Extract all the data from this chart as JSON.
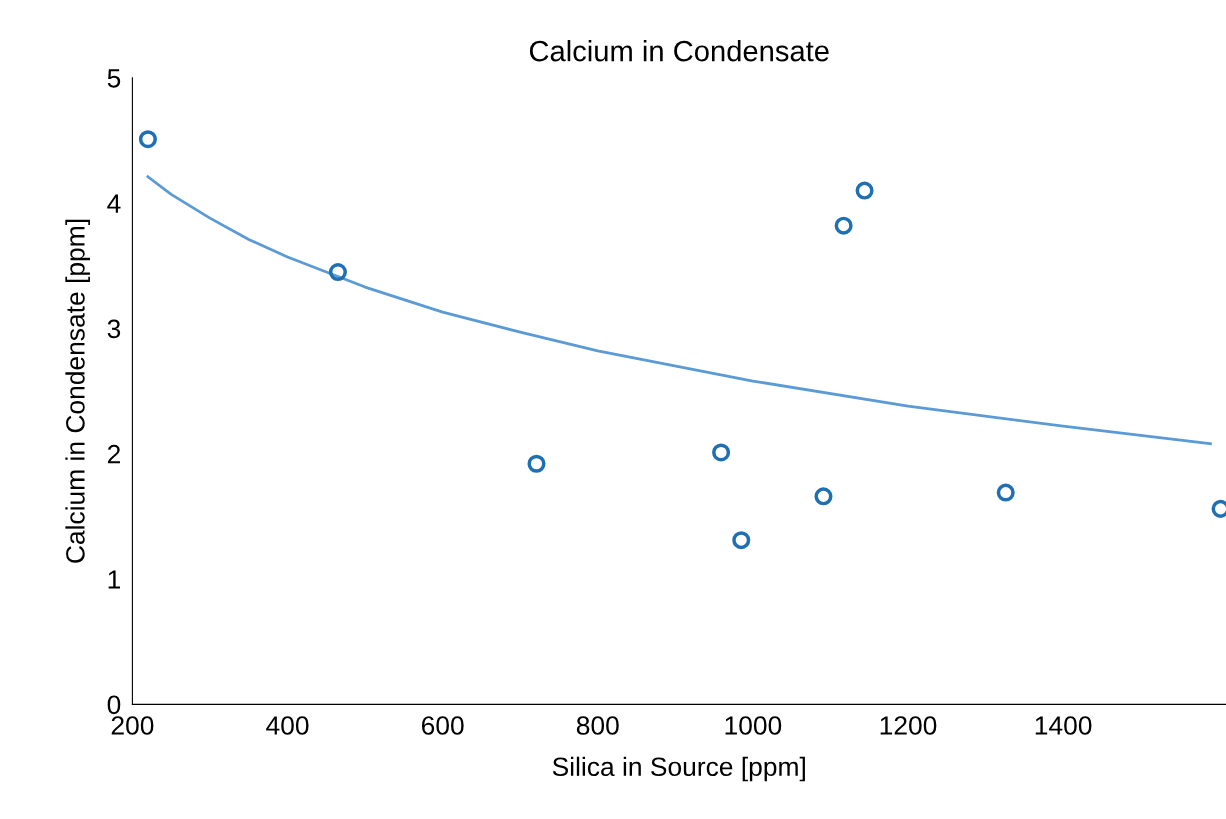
{
  "chart_data": {
    "type": "scatter",
    "title": "Calcium in Condensate",
    "xlabel": "Silica in Source [ppm]",
    "ylabel": "Calcium in Condensate [ppm]",
    "xlim": [
      200,
      1610
    ],
    "xticks": [
      200,
      400,
      600,
      800,
      1000,
      1200,
      1400
    ],
    "ylim": [
      0,
      5
    ],
    "yticks": [
      0,
      1,
      2,
      3,
      4,
      5
    ],
    "grid": false,
    "series": [
      {
        "color": "#1f6fb4",
        "marker": "circle",
        "x": [
          220,
          465,
          721,
          959,
          985,
          1091,
          1117,
          1144,
          1326,
          1603
        ],
        "values": [
          4.51,
          3.45,
          1.92,
          2.01,
          1.31,
          1.66,
          3.82,
          4.1,
          1.69,
          1.56
        ]
      },
      {
        "type": "line",
        "color": "#5b9bd5",
        "marker": "none",
        "line_style": "solid",
        "x": [
          220,
          250,
          300,
          350,
          400,
          500,
          600,
          700,
          800,
          1000,
          1200,
          1400,
          1590
        ],
        "values": [
          4.21,
          4.07,
          3.88,
          3.71,
          3.57,
          3.33,
          3.13,
          2.97,
          2.82,
          2.58,
          2.38,
          2.22,
          2.08
        ]
      }
    ]
  }
}
